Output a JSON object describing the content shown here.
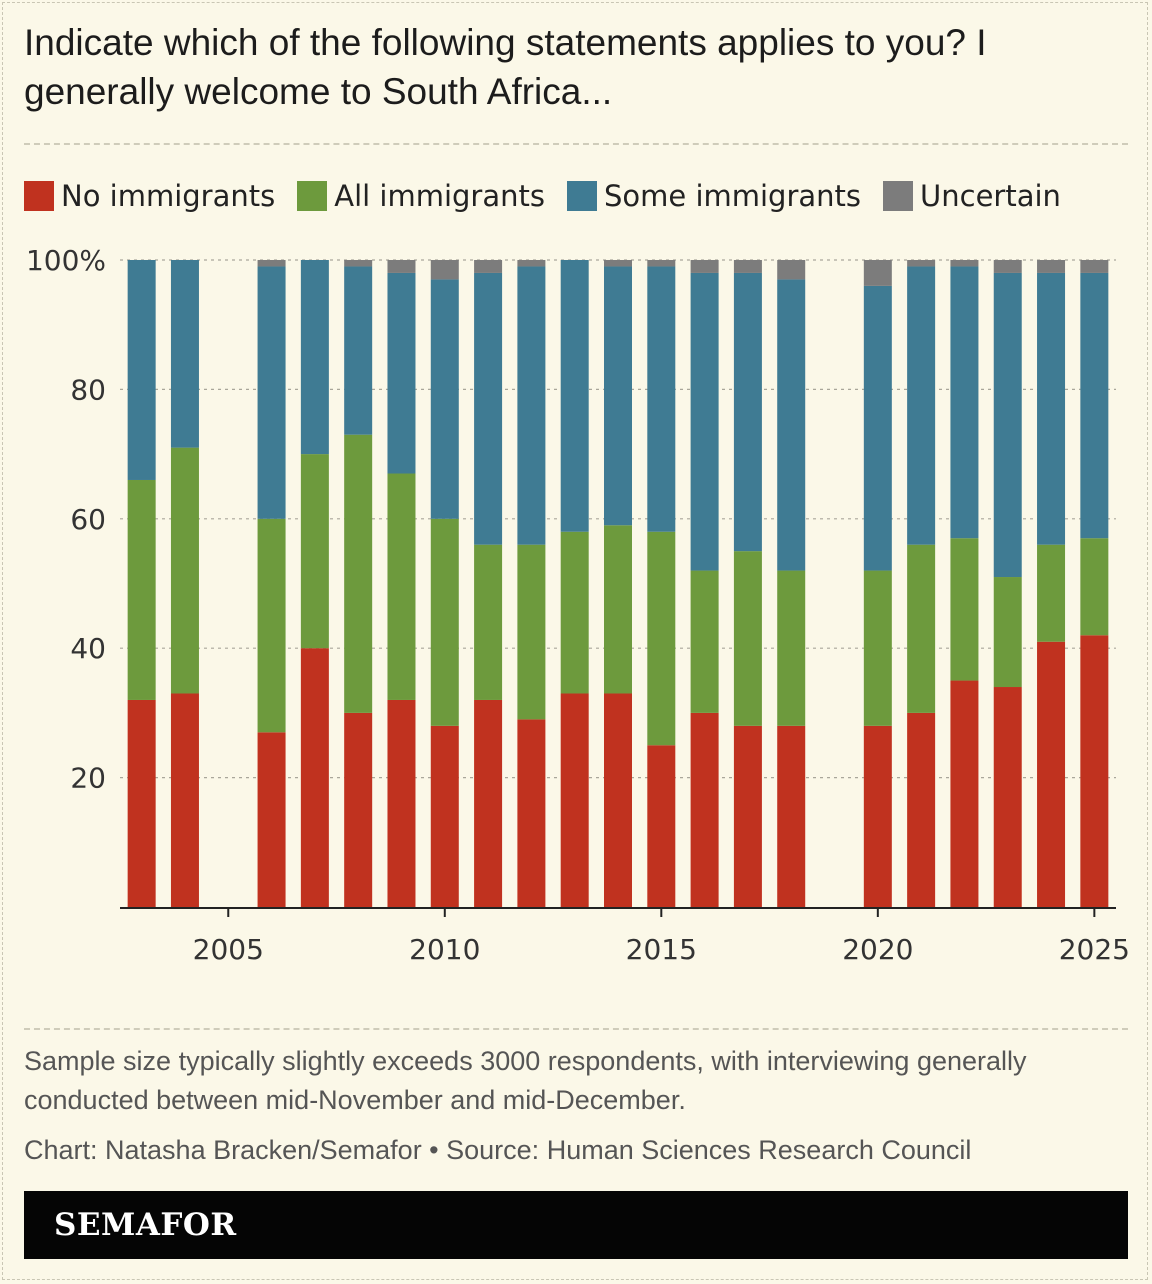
{
  "title": "Indicate which of the following statements applies to you? I generally welcome to South Africa...",
  "note": "Sample size typically slightly exceeds 3000 respondents, with interviewing generally conducted between mid-November and mid-December.",
  "credit": "Chart: Natasha Bracken/Semafor • Source: Human Sciences Research Council",
  "brand": "SEMAFOR",
  "colors": {
    "no_immigrants": "#c0321f",
    "all_immigrants": "#6d9a3d",
    "some_immigrants": "#3f7b93",
    "uncertain": "#7c7c7c",
    "background": "#fbf8e8"
  },
  "chart_data": {
    "type": "bar",
    "stacked": true,
    "title": "Indicate which of the following statements applies to you? I generally welcome to South Africa...",
    "xlabel": "",
    "ylabel": "",
    "ylim": [
      0,
      100
    ],
    "xlim": [
      2002.5,
      2025.5
    ],
    "y_ticks": [
      20,
      40,
      60,
      80,
      100
    ],
    "y_tick_labels": [
      "20",
      "40",
      "60",
      "80",
      "100%"
    ],
    "x_ticks": [
      2005,
      2010,
      2015,
      2020,
      2025
    ],
    "x_tick_labels": [
      "2005",
      "2010",
      "2015",
      "2020",
      "2025"
    ],
    "grid": true,
    "legend_position": "top-left",
    "x": [
      2003,
      2004,
      2006,
      2007,
      2008,
      2009,
      2010,
      2011,
      2012,
      2013,
      2014,
      2015,
      2016,
      2017,
      2018,
      2020,
      2021,
      2022,
      2023,
      2024,
      2025
    ],
    "series": [
      {
        "name": "No immigrants",
        "color": "#c0321f",
        "values": [
          32,
          33,
          27,
          40,
          30,
          32,
          28,
          32,
          29,
          33,
          33,
          25,
          30,
          28,
          28,
          28,
          30,
          35,
          34,
          41,
          42
        ]
      },
      {
        "name": "All immigrants",
        "color": "#6d9a3d",
        "values": [
          34,
          38,
          33,
          30,
          43,
          35,
          32,
          24,
          27,
          25,
          26,
          33,
          22,
          27,
          24,
          24,
          26,
          22,
          17,
          15,
          15
        ]
      },
      {
        "name": "Some immigrants",
        "color": "#3f7b93",
        "values": [
          34,
          29,
          39,
          30,
          26,
          31,
          37,
          42,
          43,
          42,
          40,
          41,
          46,
          43,
          45,
          44,
          43,
          42,
          47,
          42,
          41
        ]
      },
      {
        "name": "Uncertain",
        "color": "#7c7c7c",
        "values": [
          0,
          0,
          1,
          0,
          1,
          2,
          3,
          2,
          1,
          0,
          1,
          1,
          2,
          2,
          3,
          4,
          1,
          1,
          2,
          2,
          2
        ]
      }
    ]
  }
}
